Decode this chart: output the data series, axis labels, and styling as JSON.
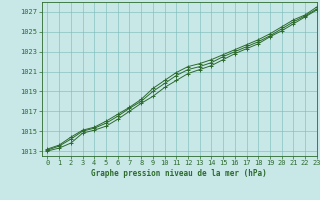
{
  "title": "Graphe pression niveau de la mer (hPa)",
  "bg_color": "#c8e8e8",
  "grid_color": "#7ab8b8",
  "line_color": "#2d6a2d",
  "xlim": [
    -0.5,
    23
  ],
  "ylim": [
    1012.5,
    1028.0
  ],
  "yticks": [
    1013,
    1015,
    1017,
    1019,
    1021,
    1023,
    1025,
    1027
  ],
  "xticks": [
    0,
    1,
    2,
    3,
    4,
    5,
    6,
    7,
    8,
    9,
    10,
    11,
    12,
    13,
    14,
    15,
    16,
    17,
    18,
    19,
    20,
    21,
    22,
    23
  ],
  "line1_y": [
    1013.0,
    1013.3,
    1013.8,
    1014.8,
    1015.1,
    1015.5,
    1016.2,
    1017.0,
    1017.8,
    1018.5,
    1019.4,
    1020.1,
    1020.8,
    1021.2,
    1021.6,
    1022.2,
    1022.8,
    1023.3,
    1023.8,
    1024.5,
    1025.1,
    1025.8,
    1026.5,
    1027.2
  ],
  "line2_y": [
    1013.1,
    1013.5,
    1014.2,
    1015.0,
    1015.3,
    1015.8,
    1016.5,
    1017.3,
    1018.0,
    1019.0,
    1019.8,
    1020.6,
    1021.2,
    1021.5,
    1021.9,
    1022.5,
    1023.0,
    1023.5,
    1024.0,
    1024.6,
    1025.3,
    1026.0,
    1026.6,
    1027.3
  ],
  "line3_y": [
    1013.2,
    1013.6,
    1014.4,
    1015.1,
    1015.4,
    1016.0,
    1016.7,
    1017.4,
    1018.2,
    1019.3,
    1020.1,
    1020.9,
    1021.5,
    1021.8,
    1022.2,
    1022.7,
    1023.2,
    1023.7,
    1024.2,
    1024.8,
    1025.5,
    1026.2,
    1026.7,
    1027.5
  ],
  "title_fontsize": 5.5,
  "tick_fontsize": 5.0,
  "linewidth": 0.7,
  "markersize": 3.0,
  "markeredgewidth": 0.7
}
